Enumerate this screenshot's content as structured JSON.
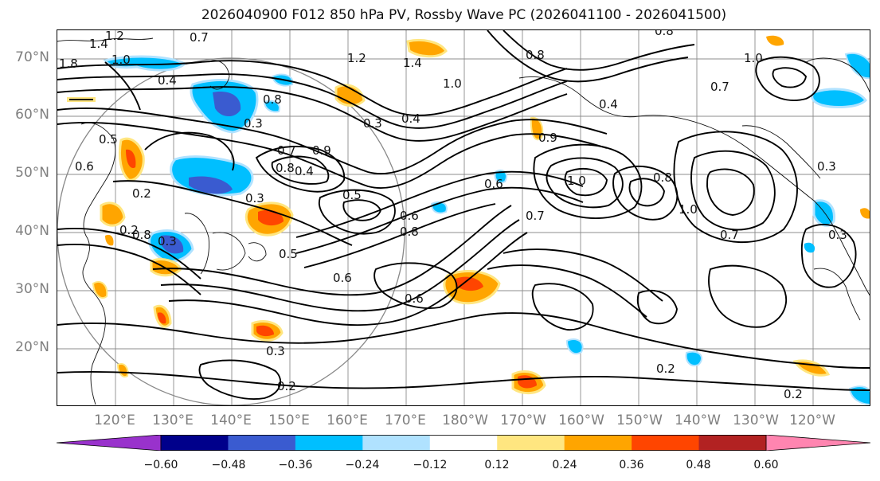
{
  "title": "2026040900 F012 850 hPa PV, Rossby Wave PC (2026041100 - 2026041500)",
  "lat_labels": [
    "70°N",
    "60°N",
    "50°N",
    "40°N",
    "30°N",
    "20°N"
  ],
  "lon_labels": [
    "120°E",
    "130°E",
    "140°E",
    "150°E",
    "160°E",
    "170°E",
    "180°W",
    "170°W",
    "160°W",
    "150°W",
    "140°W",
    "130°W",
    "120°W"
  ],
  "colorbar": {
    "ticks": [
      "−0.60",
      "−0.48",
      "−0.36",
      "−0.24",
      "−0.12",
      "0.12",
      "0.24",
      "0.36",
      "0.48",
      "0.60"
    ],
    "colors": [
      "#9932cc",
      "#00008b",
      "#3a5bd0",
      "#00bfff",
      "#b0e2ff",
      "#ffffff",
      "#ffe680",
      "#ffa500",
      "#ff4500",
      "#b22222",
      "#ff85b0"
    ]
  },
  "contour_labels": [
    "1.4",
    "1.2",
    "1.0",
    "0.7",
    "0.4",
    "0.3",
    "0.8",
    "1.8",
    "0.5",
    "0.6",
    "0.2",
    "0.3",
    "0.2",
    "0.3",
    "0.8",
    "0.7",
    "0.9",
    "0.8",
    "1.2",
    "1.4",
    "0.4",
    "1.0",
    "0.3",
    "0.5",
    "0.4",
    "0.6",
    "0.8",
    "0.5",
    "0.6",
    "0.6",
    "0.7",
    "1.0",
    "0.9",
    "0.6",
    "0.8",
    "1.0",
    "0.7",
    "0.8",
    "0.7",
    "1.0",
    "0.4",
    "0.3",
    "0.8",
    "0.2",
    "0.2",
    "0.3",
    "0.3",
    "0.2"
  ]
}
